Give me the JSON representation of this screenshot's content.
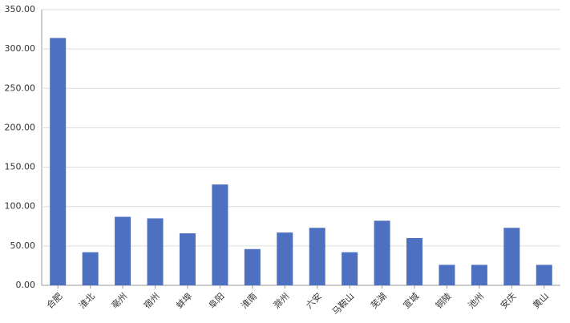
{
  "chart_data": {
    "type": "bar",
    "categories": [
      "合肥",
      "淮北",
      "亳州",
      "宿州",
      "蚌埠",
      "阜阳",
      "淮南",
      "滁州",
      "六安",
      "马鞍山",
      "芜湖",
      "宣城",
      "铜陵",
      "池州",
      "安庆",
      "黄山"
    ],
    "values": [
      314,
      42,
      87,
      85,
      66,
      128,
      46,
      67,
      73,
      42,
      82,
      60,
      26,
      26,
      73,
      26
    ],
    "color": "#4e70c1",
    "ylim": [
      0,
      350
    ],
    "yticks": [
      {
        "value": 0,
        "label": "0.00"
      },
      {
        "value": 50,
        "label": "50.00"
      },
      {
        "value": 100,
        "label": "100.00"
      },
      {
        "value": 150,
        "label": "150.00"
      },
      {
        "value": 200,
        "label": "200.00"
      },
      {
        "value": 250,
        "label": "250.00"
      },
      {
        "value": 300,
        "label": "300.00"
      },
      {
        "value": 350,
        "label": "350.00"
      }
    ],
    "grid": true
  }
}
